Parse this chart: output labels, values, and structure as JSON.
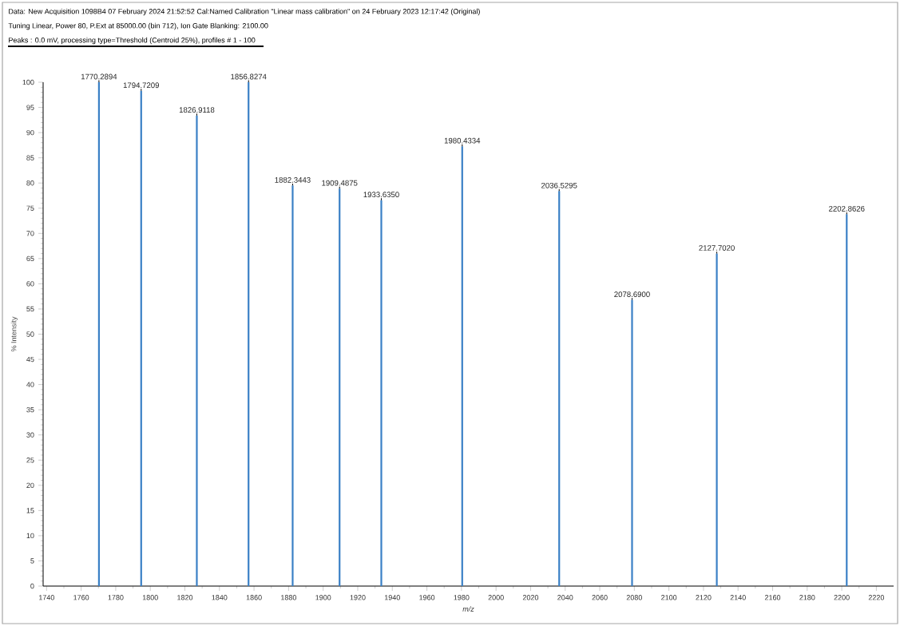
{
  "chart_data": {
    "type": "bar",
    "title": "Data: New Acquisition 1098B4 07 February 2024 21:52:52 Cal:Named Calibration \"Linear mass calibration\" on 24 February 2023 12:17:42 (Original)",
    "subtitle": "Tuning Linear, Power 80, P.Ext at 85000.00 (bin 712), Ion Gate Blanking: 2100.00",
    "annotations": [
      "Peaks : 0.0 mV, processing type=Threshold (Centroid 25%), profiles # 1 - 100",
      {
        "text": "1770.2894",
        "x": 1770.2894,
        "y": 100
      },
      {
        "text": "1794.7209",
        "x": 1794.7209,
        "y": 98.3
      },
      {
        "text": "1826.9118",
        "x": 1826.9118,
        "y": 93.4
      },
      {
        "text": "1856.8274",
        "x": 1856.8274,
        "y": 100
      },
      {
        "text": "1882.3443",
        "x": 1882.3443,
        "y": 79.5
      },
      {
        "text": "1909.4875",
        "x": 1909.4875,
        "y": 78.9
      },
      {
        "text": "1933.6350",
        "x": 1933.635,
        "y": 76.6
      },
      {
        "text": "1980.4334",
        "x": 1980.4334,
        "y": 87.3
      },
      {
        "text": "2036.5295",
        "x": 2036.5295,
        "y": 78.4
      },
      {
        "text": "2078.6900",
        "x": 2078.69,
        "y": 56.8
      },
      {
        "text": "2127.7020",
        "x": 2127.702,
        "y": 66
      },
      {
        "text": "2202.8626",
        "x": 2202.8626,
        "y": 73.8
      }
    ],
    "xlabel": "m/z",
    "ylabel": "% Intensity",
    "x": [
      1770.2894,
      1794.7209,
      1826.9118,
      1856.8274,
      1882.3443,
      1909.4875,
      1933.635,
      1980.4334,
      2036.5295,
      2078.69,
      2127.702,
      2202.8626
    ],
    "values": [
      100,
      98.3,
      93.4,
      100,
      79.5,
      78.9,
      76.6,
      87.3,
      78.4,
      56.8,
      66,
      73.8
    ],
    "color": "#3a80c6",
    "xlim": [
      1738,
      2230
    ],
    "ylim": [
      0,
      100
    ],
    "xticks": [
      1740,
      1760,
      1780,
      1800,
      1820,
      1840,
      1860,
      1880,
      1900,
      1920,
      1940,
      1960,
      1980,
      2000,
      2020,
      2040,
      2060,
      2080,
      2100,
      2120,
      2140,
      2160,
      2180,
      2200,
      2220
    ],
    "yticks": [
      0,
      5,
      10,
      15,
      20,
      25,
      30,
      35,
      40,
      45,
      50,
      55,
      60,
      65,
      70,
      75,
      80,
      85,
      90,
      95,
      100
    ]
  }
}
